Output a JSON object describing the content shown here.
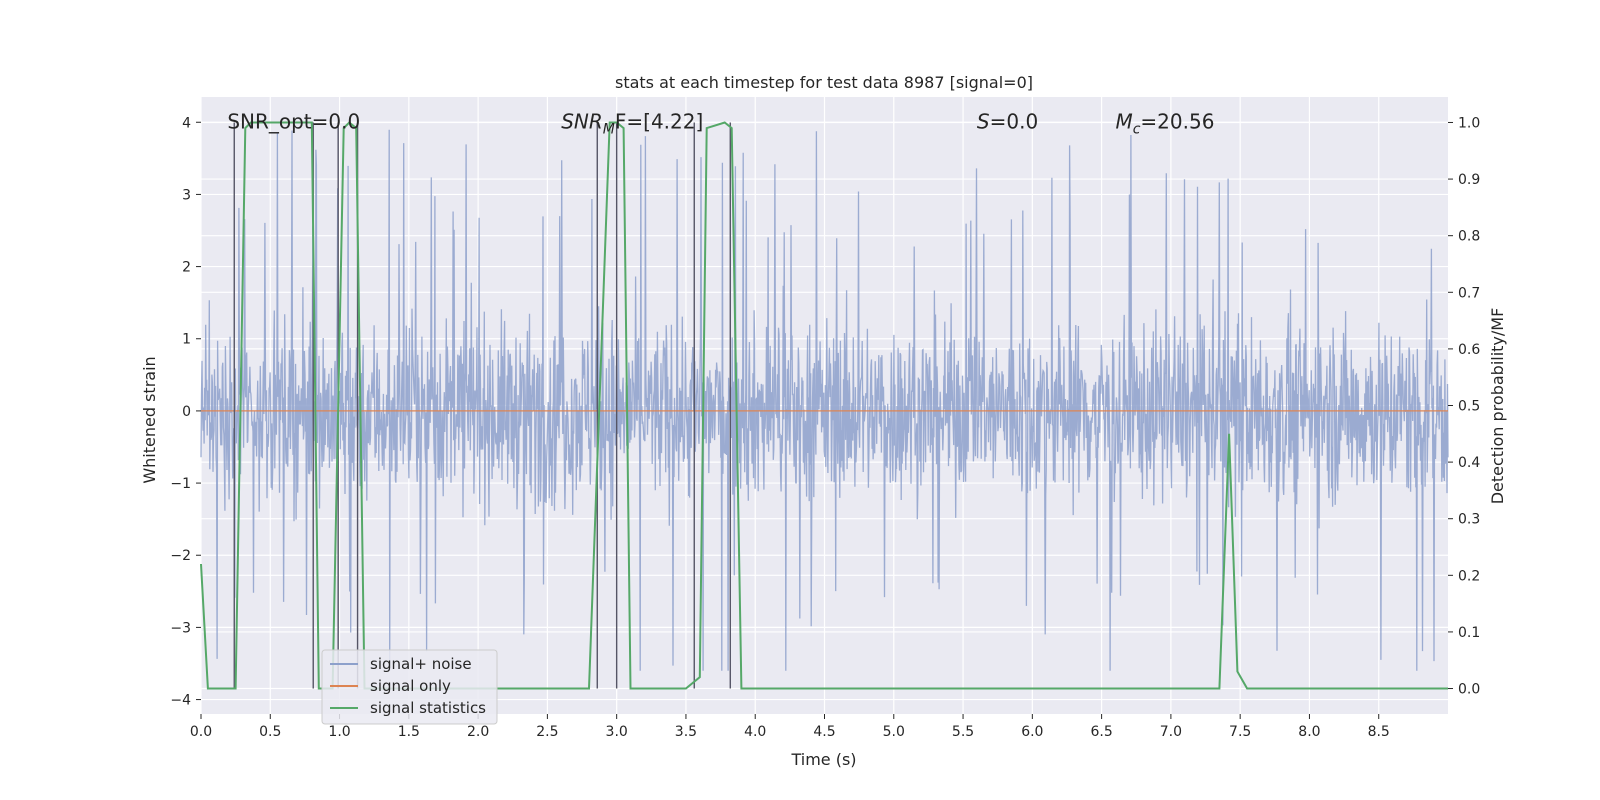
{
  "chart_data": {
    "type": "line",
    "title": "stats at each timestep for test data 8987 [signal=0]",
    "xlabel": "Time (s)",
    "ylabel_left": "Whitened strain",
    "ylabel_right": "Detection probability/MF",
    "xlim": [
      0.0,
      9.0
    ],
    "ylim_left": [
      -4.2,
      4.35
    ],
    "ylim_right": [
      -0.045,
      1.045
    ],
    "x_ticks": [
      "0.0",
      "0.5",
      "1.0",
      "1.5",
      "2.0",
      "2.5",
      "3.0",
      "3.5",
      "4.0",
      "4.5",
      "5.0",
      "5.5",
      "6.0",
      "6.5",
      "7.0",
      "7.5",
      "8.0",
      "8.5"
    ],
    "x_tick_values": [
      0.0,
      0.5,
      1.0,
      1.5,
      2.0,
      2.5,
      3.0,
      3.5,
      4.0,
      4.5,
      5.0,
      5.5,
      6.0,
      6.5,
      7.0,
      7.5,
      8.0,
      8.5
    ],
    "y_ticks_left": [
      "−4",
      "−3",
      "−2",
      "−1",
      "0",
      "1",
      "2",
      "3",
      "4"
    ],
    "y_tick_values_left": [
      -4,
      -3,
      -2,
      -1,
      0,
      1,
      2,
      3,
      4
    ],
    "y_ticks_right": [
      "0.0",
      "0.1",
      "0.2",
      "0.3",
      "0.4",
      "0.5",
      "0.6",
      "0.7",
      "0.8",
      "0.9",
      "1.0"
    ],
    "y_tick_values_right": [
      0.0,
      0.1,
      0.2,
      0.3,
      0.4,
      0.5,
      0.6,
      0.7,
      0.8,
      0.9,
      1.0
    ],
    "annotations": [
      {
        "text": "SNR_opt=0.0",
        "x": 0.19,
        "y": 4.0
      },
      {
        "text": "SNR",
        "sub": "M",
        "tail": "F=[4.22]",
        "x": 2.6,
        "y": 4.0
      },
      {
        "text": "S",
        "tail": "=0.0",
        "x": 5.6,
        "y": 4.0
      },
      {
        "text": "M",
        "sub": "c",
        "tail": "=20.56",
        "x": 6.6,
        "y": 4.0
      }
    ],
    "series": [
      {
        "name": "signal+ noise",
        "color": "#8da0cb",
        "axis": "left",
        "kind": "noise",
        "typical_range": [
          -1.5,
          1.6
        ],
        "extremes_range": [
          -3.6,
          4.0
        ]
      },
      {
        "name": "signal only",
        "color": "#dd8452",
        "axis": "left",
        "x": [
          0.0,
          9.0
        ],
        "y": [
          0.0,
          0.0
        ]
      },
      {
        "name": "signal statistics",
        "color": "#55a868",
        "axis": "right",
        "x": [
          0.0,
          0.05,
          0.25,
          0.32,
          0.36,
          0.8,
          0.85,
          0.95,
          1.03,
          1.07,
          1.12,
          1.18,
          2.8,
          2.95,
          3.0,
          3.05,
          3.1,
          3.5,
          3.6,
          3.65,
          3.78,
          3.83,
          3.9,
          7.35,
          7.42,
          7.48,
          7.55,
          9.0
        ],
        "y": [
          0.22,
          0.0,
          0.0,
          0.99,
          1.0,
          1.0,
          0.0,
          0.0,
          0.99,
          1.0,
          0.99,
          0.0,
          0.0,
          1.0,
          1.0,
          0.99,
          0.0,
          0.0,
          0.02,
          0.99,
          1.0,
          0.99,
          0.0,
          0.0,
          0.45,
          0.03,
          0.0,
          0.0
        ]
      }
    ],
    "vertical_markers": [
      0.24,
      0.81,
      0.99,
      1.13,
      2.86,
      3.0,
      3.56,
      3.82
    ],
    "legend": {
      "position": "lower-left",
      "entries": [
        "signal+ noise",
        "signal only",
        "signal statistics"
      ]
    }
  }
}
